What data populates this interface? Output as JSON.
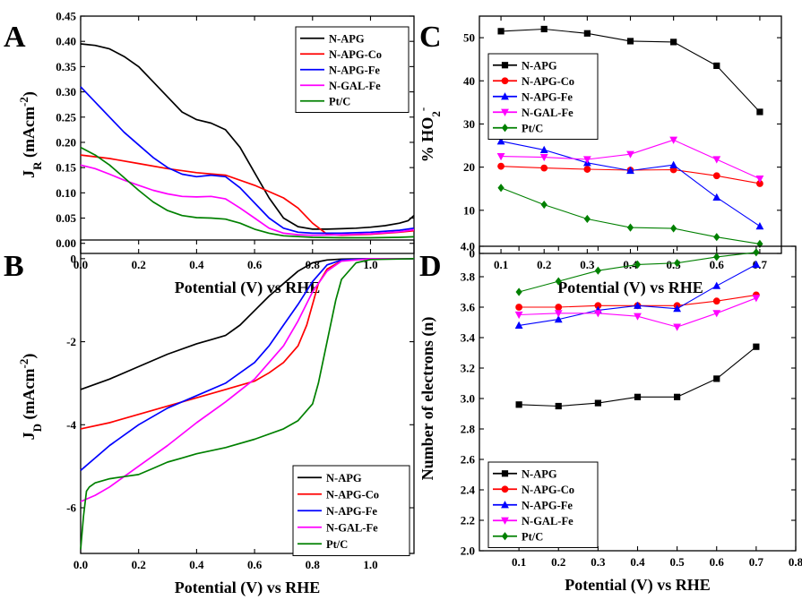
{
  "figure": {
    "colors": {
      "N-APG": "#000000",
      "N-APG-Co": "#ff0000",
      "N-APG-Fe": "#0000ff",
      "N-GAL-Fe": "#ff00ff",
      "Pt/C": "#008000"
    }
  },
  "chart_data": [
    {
      "panel": "A",
      "type": "line",
      "xlabel": "Potential (V) vs RHE",
      "ylabel": "J",
      "ylabel_sub": "R",
      "ylabel_unit": " (mAcm",
      "ylabel_sup": "-2",
      "ylabel_close": ")",
      "xlim": [
        0,
        1.15
      ],
      "ylim": [
        -0.02,
        0.45
      ],
      "xticks": [
        0.0,
        0.2,
        0.4,
        0.6,
        0.8,
        1.0
      ],
      "xtick_labels": [
        "0.0",
        "0.2",
        "0.4",
        "0.6",
        "0.8",
        "1.0"
      ],
      "yticks": [
        0.0,
        0.05,
        0.1,
        0.15,
        0.2,
        0.25,
        0.3,
        0.35,
        0.4,
        0.45
      ],
      "ytick_labels": [
        "0.00",
        "0.05",
        "0.10",
        "0.15",
        "0.20",
        "0.25",
        "0.30",
        "0.35",
        "0.40",
        "0.45"
      ],
      "legend": "top-right",
      "series": [
        {
          "name": "N-APG",
          "x": [
            0.0,
            0.05,
            0.1,
            0.15,
            0.2,
            0.25,
            0.3,
            0.35,
            0.4,
            0.45,
            0.5,
            0.55,
            0.6,
            0.65,
            0.7,
            0.75,
            0.8,
            0.85,
            0.9,
            0.95,
            1.0,
            1.05,
            1.1,
            1.13,
            1.15
          ],
          "y": [
            0.395,
            0.392,
            0.385,
            0.37,
            0.35,
            0.32,
            0.29,
            0.26,
            0.245,
            0.238,
            0.225,
            0.19,
            0.14,
            0.09,
            0.05,
            0.033,
            0.028,
            0.028,
            0.029,
            0.03,
            0.032,
            0.035,
            0.04,
            0.045,
            0.055
          ]
        },
        {
          "name": "N-APG-Co",
          "x": [
            0.0,
            0.1,
            0.2,
            0.3,
            0.4,
            0.5,
            0.6,
            0.7,
            0.75,
            0.8,
            0.85,
            0.9,
            1.0,
            1.1,
            1.15
          ],
          "y": [
            0.175,
            0.168,
            0.158,
            0.148,
            0.14,
            0.135,
            0.115,
            0.09,
            0.07,
            0.04,
            0.018,
            0.016,
            0.018,
            0.022,
            0.025
          ]
        },
        {
          "name": "N-APG-Fe",
          "x": [
            0.0,
            0.05,
            0.1,
            0.15,
            0.2,
            0.25,
            0.3,
            0.35,
            0.4,
            0.45,
            0.5,
            0.55,
            0.6,
            0.65,
            0.7,
            0.75,
            0.8,
            0.9,
            1.0,
            1.1,
            1.15
          ],
          "y": [
            0.31,
            0.28,
            0.25,
            0.22,
            0.195,
            0.17,
            0.15,
            0.137,
            0.132,
            0.135,
            0.132,
            0.11,
            0.08,
            0.05,
            0.03,
            0.022,
            0.02,
            0.02,
            0.022,
            0.026,
            0.03
          ]
        },
        {
          "name": "N-GAL-Fe",
          "x": [
            0.0,
            0.05,
            0.1,
            0.15,
            0.2,
            0.25,
            0.3,
            0.35,
            0.4,
            0.45,
            0.5,
            0.55,
            0.6,
            0.65,
            0.7,
            0.75,
            0.8,
            0.9,
            1.0,
            1.1,
            1.15
          ],
          "y": [
            0.155,
            0.148,
            0.137,
            0.125,
            0.115,
            0.105,
            0.098,
            0.093,
            0.092,
            0.093,
            0.088,
            0.07,
            0.05,
            0.03,
            0.02,
            0.017,
            0.016,
            0.017,
            0.019,
            0.023,
            0.027
          ]
        },
        {
          "name": "Pt/C",
          "x": [
            0.0,
            0.05,
            0.1,
            0.15,
            0.2,
            0.25,
            0.3,
            0.35,
            0.4,
            0.45,
            0.5,
            0.55,
            0.6,
            0.65,
            0.7,
            0.8,
            0.9,
            1.0,
            1.1,
            1.15
          ],
          "y": [
            0.19,
            0.175,
            0.155,
            0.13,
            0.105,
            0.082,
            0.065,
            0.055,
            0.051,
            0.05,
            0.048,
            0.04,
            0.028,
            0.02,
            0.015,
            0.012,
            0.011,
            0.011,
            0.012,
            0.013
          ]
        }
      ]
    },
    {
      "panel": "B",
      "type": "line",
      "xlabel": "Potential (V) vs RHE",
      "ylabel": "J",
      "ylabel_sub": "D",
      "ylabel_unit": " (mAcm",
      "ylabel_sup": "-2",
      "ylabel_close": ")",
      "xlim": [
        0,
        1.15
      ],
      "ylim": [
        -7.1,
        0.45
      ],
      "xticks": [
        0.0,
        0.2,
        0.4,
        0.6,
        0.8,
        1.0
      ],
      "xtick_labels": [
        "0.0",
        "0.2",
        "0.4",
        "0.6",
        "0.8",
        "1.0"
      ],
      "yticks": [
        -6,
        -4,
        -2,
        0
      ],
      "ytick_labels": [
        "-6",
        "-4",
        "-2",
        "0"
      ],
      "legend": "bottom-right",
      "series": [
        {
          "name": "N-APG",
          "x": [
            0.0,
            0.1,
            0.2,
            0.3,
            0.4,
            0.45,
            0.5,
            0.55,
            0.6,
            0.65,
            0.7,
            0.75,
            0.8,
            0.85,
            0.9,
            1.0,
            1.15
          ],
          "y": [
            -3.15,
            -2.9,
            -2.6,
            -2.3,
            -2.05,
            -1.95,
            -1.85,
            -1.6,
            -1.25,
            -0.9,
            -0.6,
            -0.3,
            -0.1,
            -0.03,
            -0.01,
            0.0,
            0.0
          ]
        },
        {
          "name": "N-APG-Co",
          "x": [
            0.0,
            0.1,
            0.2,
            0.3,
            0.4,
            0.5,
            0.6,
            0.65,
            0.7,
            0.75,
            0.78,
            0.8,
            0.82,
            0.85,
            0.9,
            1.0,
            1.15
          ],
          "y": [
            -4.1,
            -3.95,
            -3.75,
            -3.55,
            -3.35,
            -3.15,
            -2.95,
            -2.75,
            -2.5,
            -2.1,
            -1.6,
            -1.1,
            -0.6,
            -0.25,
            -0.05,
            0.0,
            0.0
          ]
        },
        {
          "name": "N-APG-Fe",
          "x": [
            0.0,
            0.05,
            0.1,
            0.2,
            0.3,
            0.4,
            0.5,
            0.6,
            0.65,
            0.7,
            0.75,
            0.8,
            0.85,
            0.9,
            1.0,
            1.15
          ],
          "y": [
            -5.1,
            -4.8,
            -4.5,
            -4.0,
            -3.6,
            -3.3,
            -3.0,
            -2.5,
            -2.1,
            -1.6,
            -1.1,
            -0.55,
            -0.15,
            -0.03,
            0.0,
            0.0
          ]
        },
        {
          "name": "N-GAL-Fe",
          "x": [
            0.0,
            0.05,
            0.1,
            0.2,
            0.3,
            0.4,
            0.5,
            0.6,
            0.7,
            0.75,
            0.8,
            0.85,
            0.9,
            1.0,
            1.15
          ],
          "y": [
            -5.85,
            -5.7,
            -5.5,
            -5.0,
            -4.5,
            -3.95,
            -3.45,
            -2.9,
            -2.1,
            -1.5,
            -0.8,
            -0.3,
            -0.06,
            0.0,
            0.0
          ]
        },
        {
          "name": "Pt/C",
          "x": [
            0.0,
            0.01,
            0.02,
            0.03,
            0.05,
            0.1,
            0.15,
            0.2,
            0.25,
            0.3,
            0.35,
            0.4,
            0.5,
            0.6,
            0.7,
            0.75,
            0.8,
            0.82,
            0.85,
            0.88,
            0.9,
            0.95,
            1.0,
            1.15
          ],
          "y": [
            -7.0,
            -6.2,
            -5.6,
            -5.5,
            -5.4,
            -5.3,
            -5.25,
            -5.2,
            -5.05,
            -4.9,
            -4.8,
            -4.7,
            -4.55,
            -4.35,
            -4.1,
            -3.9,
            -3.5,
            -3.0,
            -2.0,
            -1.0,
            -0.5,
            -0.1,
            -0.02,
            0.0
          ]
        }
      ]
    },
    {
      "panel": "C",
      "type": "line",
      "markers": true,
      "xlabel": "Potential (V) vs RHE",
      "ylabel": "% HO",
      "ylabel_sub": "2",
      "ylabel_sup": "-",
      "xlim": [
        0.05,
        0.75
      ],
      "ylim": [
        0,
        55
      ],
      "xticks": [
        0.1,
        0.2,
        0.3,
        0.4,
        0.5,
        0.6,
        0.7
      ],
      "xtick_labels": [
        "0.1",
        "0.2",
        "0.3",
        "0.4",
        "0.5",
        "0.6",
        "0.7"
      ],
      "yticks": [
        0,
        10,
        20,
        30,
        40,
        50
      ],
      "ytick_labels": [
        "0",
        "10",
        "20",
        "30",
        "40",
        "50"
      ],
      "legend": "top-left",
      "categories": [
        0.1,
        0.2,
        0.3,
        0.4,
        0.5,
        0.6,
        0.7
      ],
      "series": [
        {
          "name": "N-APG",
          "marker": "square",
          "values": [
            51.5,
            52.0,
            51.0,
            49.2,
            49.0,
            43.5,
            32.8
          ]
        },
        {
          "name": "N-APG-Co",
          "marker": "circle",
          "values": [
            20.2,
            19.8,
            19.5,
            19.3,
            19.4,
            18.0,
            16.2
          ]
        },
        {
          "name": "N-APG-Fe",
          "marker": "triangle-up",
          "values": [
            26.0,
            24.0,
            21.0,
            19.2,
            20.5,
            13.0,
            6.3
          ]
        },
        {
          "name": "N-GAL-Fe",
          "marker": "triangle-down",
          "values": [
            22.5,
            22.3,
            21.8,
            23.0,
            26.3,
            21.8,
            17.3
          ]
        },
        {
          "name": "Pt/C",
          "marker": "diamond",
          "values": [
            15.2,
            11.3,
            8.0,
            6.0,
            5.8,
            3.8,
            2.2
          ]
        }
      ]
    },
    {
      "panel": "D",
      "type": "line",
      "markers": true,
      "xlabel": "Potential (V) vs RHE",
      "ylabel": "Number of electrons (n)",
      "xlim": [
        0.0,
        0.8
      ],
      "ylim": [
        2.0,
        4.0
      ],
      "xticks": [
        0.1,
        0.2,
        0.3,
        0.4,
        0.5,
        0.6,
        0.7,
        0.8
      ],
      "xtick_labels": [
        "0.1",
        "0.2",
        "0.3",
        "0.4",
        "0.5",
        "0.6",
        "0.7",
        "0.8"
      ],
      "yticks": [
        2.0,
        2.2,
        2.4,
        2.6,
        2.8,
        3.0,
        3.2,
        3.4,
        3.6,
        3.8,
        4.0
      ],
      "ytick_labels": [
        "2.0",
        "2.2",
        "2.4",
        "2.6",
        "2.8",
        "3.0",
        "3.2",
        "3.4",
        "3.6",
        "3.8",
        "4.0"
      ],
      "legend": "bottom-left",
      "categories": [
        0.1,
        0.2,
        0.3,
        0.4,
        0.5,
        0.6,
        0.7
      ],
      "series": [
        {
          "name": "N-APG",
          "marker": "square",
          "values": [
            2.96,
            2.95,
            2.97,
            3.01,
            3.01,
            3.13,
            3.34
          ]
        },
        {
          "name": "N-APG-Co",
          "marker": "circle",
          "values": [
            3.6,
            3.6,
            3.61,
            3.61,
            3.61,
            3.64,
            3.68
          ]
        },
        {
          "name": "N-APG-Fe",
          "marker": "triangle-up",
          "values": [
            3.48,
            3.52,
            3.58,
            3.61,
            3.59,
            3.74,
            3.88
          ]
        },
        {
          "name": "N-GAL-Fe",
          "marker": "triangle-down",
          "values": [
            3.55,
            3.56,
            3.56,
            3.54,
            3.47,
            3.56,
            3.66
          ]
        },
        {
          "name": "Pt/C",
          "marker": "diamond",
          "values": [
            3.7,
            3.77,
            3.84,
            3.88,
            3.89,
            3.93,
            3.96
          ]
        }
      ]
    }
  ]
}
